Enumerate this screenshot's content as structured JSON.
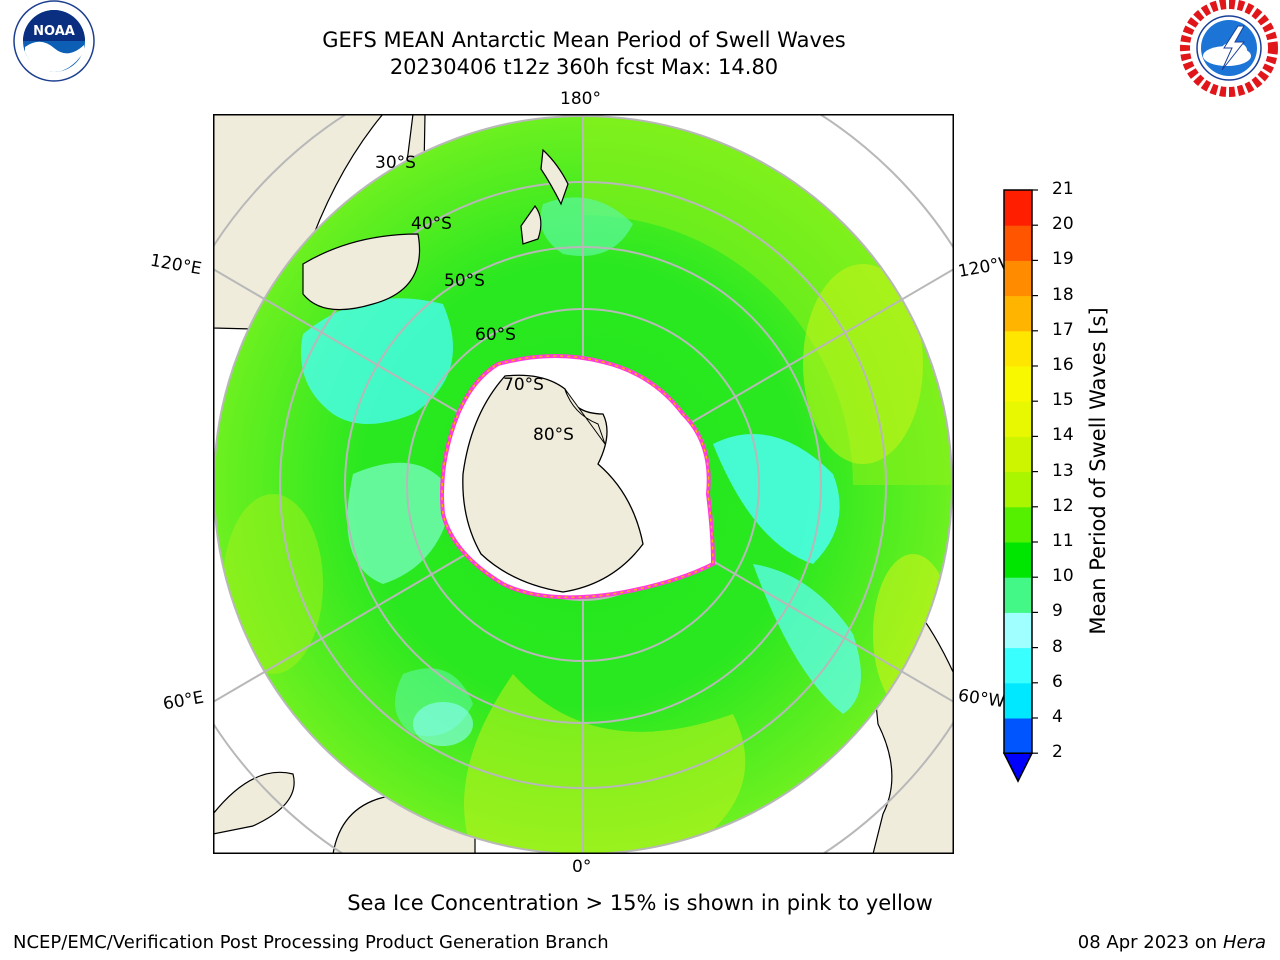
{
  "title": {
    "line1": "GEFS MEAN Antarctic Mean Period of Swell Waves",
    "line2": "20230406 t12z 360h fcst   Max: 14.80"
  },
  "logos": {
    "noaa": {
      "icon": "noaa-logo",
      "text": "NOAA",
      "ring_text": "NATIONAL OCEANIC AND ATMOSPHERIC ADMINISTRATION · U.S. DEPARTMENT OF COMMERCE"
    },
    "nws": {
      "icon": "nws-logo",
      "ring_text": "NATIONAL WEATHER SERVICE"
    }
  },
  "map": {
    "projection": "south-polar-stereographic",
    "longitude_labels": {
      "top": "180°",
      "bottom": "0°",
      "upper_left": "120°E",
      "upper_right": "120°W",
      "lower_left": "60°E",
      "lower_right": "60°W"
    },
    "latitude_labels": [
      "30°S",
      "40°S",
      "50°S",
      "60°S",
      "70°S",
      "80°S"
    ],
    "colors": {
      "land": "#efecdc",
      "sea_ice": "#ffffff",
      "ice_edge": [
        "#ff3ed8",
        "#ffa500",
        "#ffe000"
      ],
      "graticule": "#b8b8b8"
    }
  },
  "colorbar": {
    "label": "Mean Period of Swell Waves [s]",
    "ticks": [
      "2",
      "4",
      "6",
      "8",
      "9",
      "10",
      "11",
      "12",
      "13",
      "14",
      "15",
      "16",
      "17",
      "18",
      "19",
      "20",
      "21"
    ],
    "colors": [
      "#0055ff",
      "#00e8ff",
      "#3affff",
      "#a0ffff",
      "#44f888",
      "#00e600",
      "#55f000",
      "#aaf500",
      "#cdf500",
      "#e8f800",
      "#f8f800",
      "#ffe600",
      "#ffb400",
      "#ff8c00",
      "#ff5500",
      "#ff1e00"
    ],
    "under_color": "#0000ff",
    "extend": "min"
  },
  "footnote": "Sea Ice Concentration > 15% is shown in pink to yellow",
  "credits": {
    "left": "NCEP/EMC/Verification Post Processing Product Generation Branch",
    "date": "08 Apr 2023 on ",
    "machine": "Hera"
  }
}
